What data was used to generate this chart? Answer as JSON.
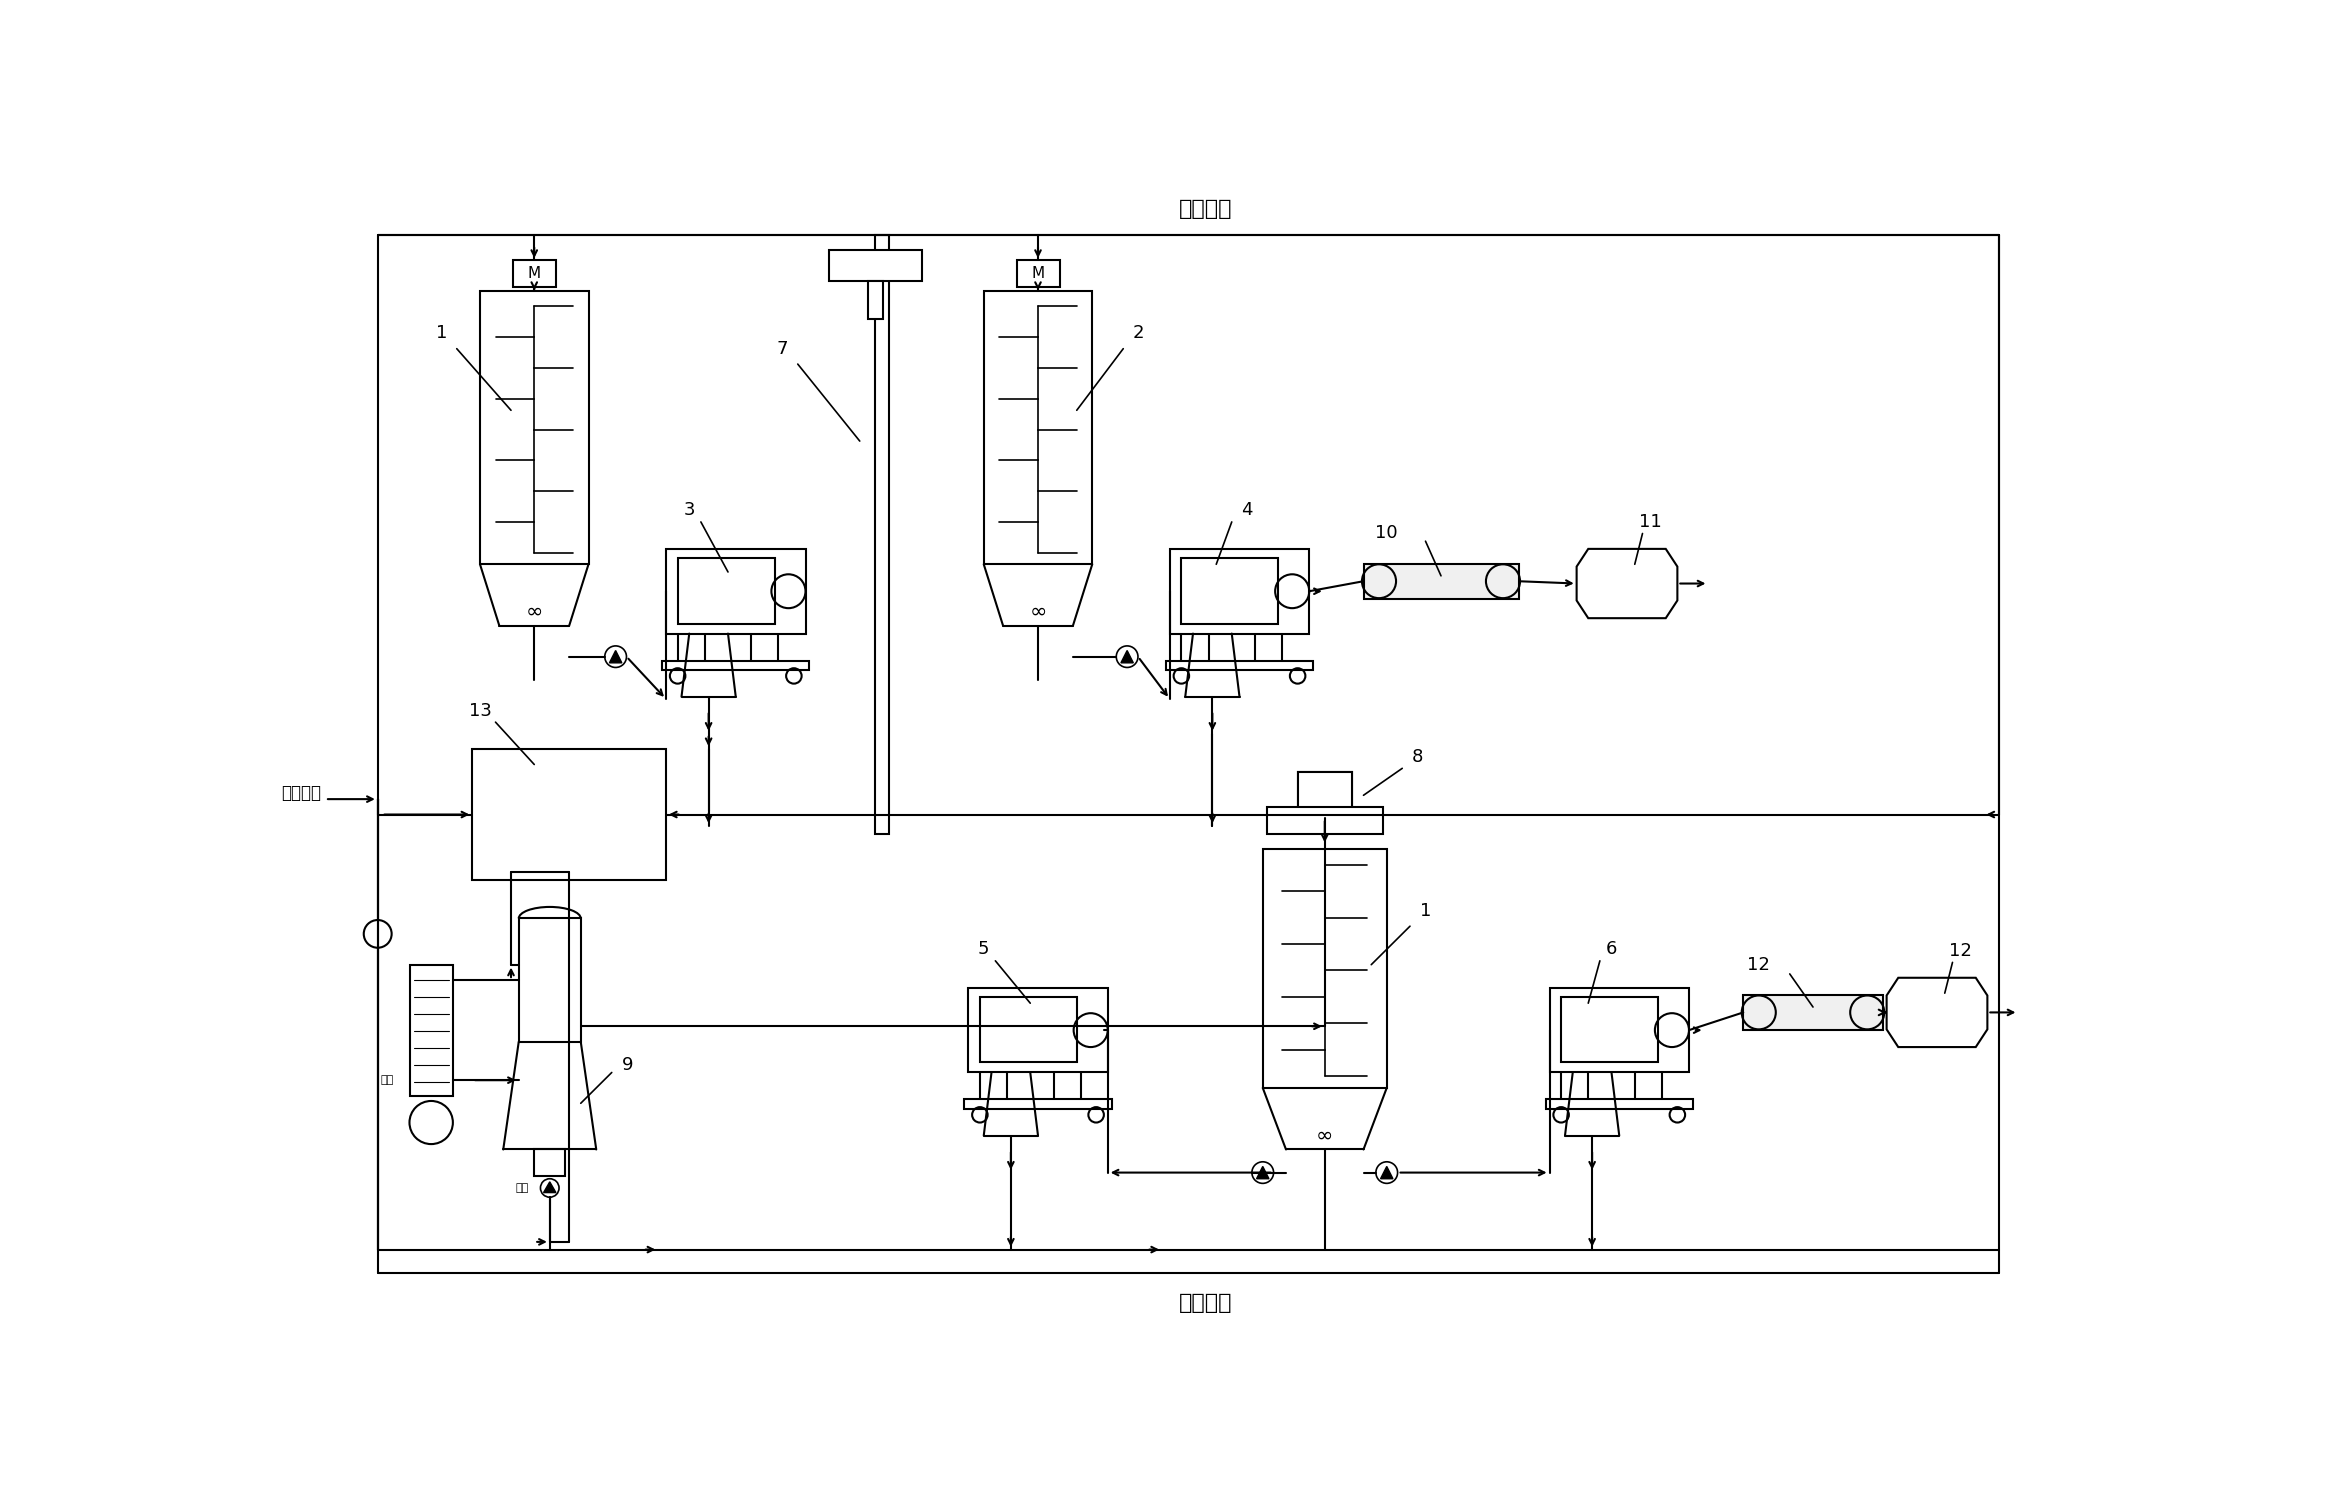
{
  "title_top": "循环母液",
  "title_bottom": "回收盐液",
  "label_left": "生产母液",
  "jin_liao": "进料",
  "fa": "阀门",
  "bg_color": "#ffffff",
  "line_color": "#000000"
}
